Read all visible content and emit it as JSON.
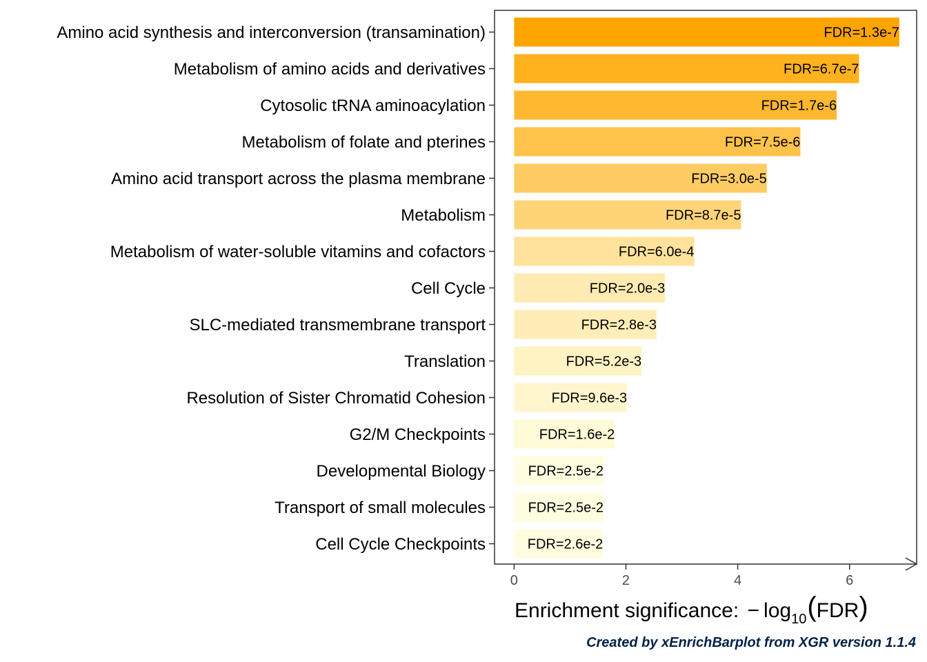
{
  "chart_data": {
    "type": "bar",
    "orientation": "horizontal",
    "categories": [
      "Amino acid synthesis and interconversion (transamination)",
      "Metabolism of amino acids and derivatives",
      "Cytosolic tRNA aminoacylation",
      "Metabolism of folate and pterines",
      "Amino acid transport across the plasma membrane",
      "Metabolism",
      "Metabolism of water-soluble vitamins and cofactors",
      "Cell Cycle",
      "SLC-mediated transmembrane transport",
      "Translation",
      "Resolution of Sister Chromatid Cohesion",
      "G2/M Checkpoints",
      "Developmental Biology",
      "Transport of small molecules",
      "Cell Cycle Checkpoints"
    ],
    "values": [
      6.89,
      6.17,
      5.77,
      5.12,
      4.52,
      4.06,
      3.22,
      2.7,
      2.55,
      2.28,
      2.02,
      1.8,
      1.6,
      1.6,
      1.59
    ],
    "bar_labels": [
      "FDR=1.3e-7",
      "FDR=6.7e-7",
      "FDR=1.7e-6",
      "FDR=7.5e-6",
      "FDR=3.0e-5",
      "FDR=8.7e-5",
      "FDR=6.0e-4",
      "FDR=2.0e-3",
      "FDR=2.8e-3",
      "FDR=5.2e-3",
      "FDR=9.6e-3",
      "FDR=1.6e-2",
      "FDR=2.5e-2",
      "FDR=2.5e-2",
      "FDR=2.6e-2"
    ],
    "xlabel_prefix": "Enrichment significance: ",
    "xlabel_math": {
      "minus": "−",
      "log": "log",
      "base": "10",
      "open": "(",
      "arg": "FDR",
      "close": ")"
    },
    "xlim": [
      -0.35,
      7.2
    ],
    "xticks": [
      0,
      2,
      4,
      6
    ],
    "xtick_labels": [
      "0",
      "2",
      "4",
      "6"
    ],
    "grid": false,
    "color_scale": {
      "low": "#fffde0",
      "high": "#ffa500"
    },
    "axis_color": "#333333"
  },
  "caption": "Created by xEnrichBarplot from XGR version 1.1.4",
  "caption_color": "#002147"
}
